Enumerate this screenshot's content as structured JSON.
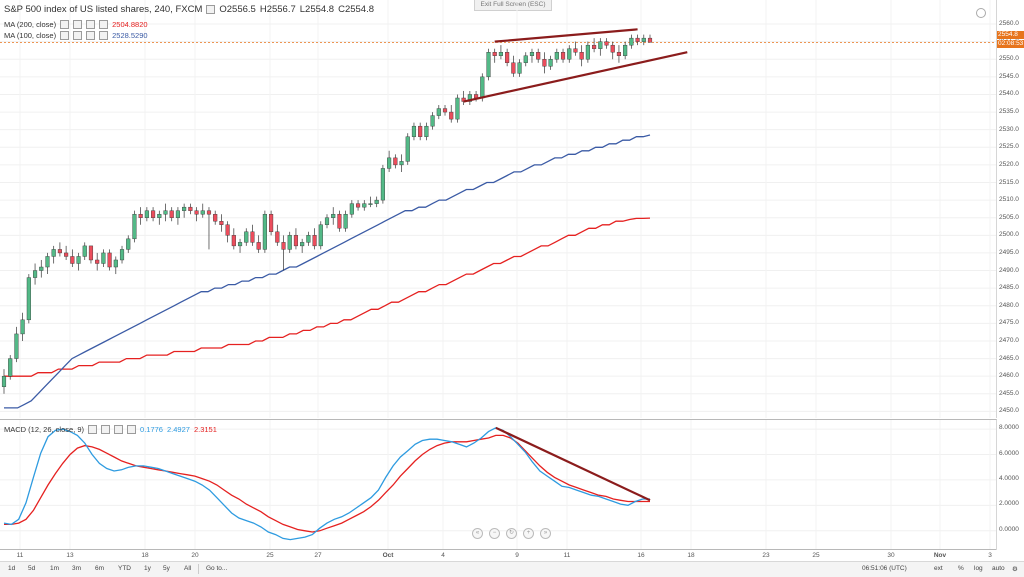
{
  "exit_full_screen": "Exit Full Screen (ESC)",
  "header": {
    "title": "S&P 500 index of US listed shares, 240, FXCM",
    "open": "O2556.5",
    "high": "H2556.7",
    "low": "L2554.8",
    "close": "C2554.8"
  },
  "indicators": {
    "ma200_label": "MA (200, close)",
    "ma200_value": "2504.8820",
    "ma100_label": "MA (100, close)",
    "ma100_value": "2528.5290",
    "macd_label": "MACD (12, 26, close, 9)",
    "macd_hist": "0.1776",
    "macd_line": "2.4927",
    "macd_signal": "2.3151"
  },
  "price_tags": {
    "last": "2554.8",
    "countdown": "02:08:53"
  },
  "colors": {
    "bull": "#53b987",
    "bear": "#eb4d5c",
    "ma100": "#3b5ba5",
    "ma200": "#e52120",
    "macd_line": "#2e9be0",
    "macd_signal": "#e52120",
    "trend": "#8b1c1c",
    "last_price": "#e7741c"
  },
  "time_axis": [
    "11",
    "13",
    "18",
    "20",
    "25",
    "27",
    "Oct",
    "4",
    "9",
    "11",
    "16",
    "18",
    "23",
    "25",
    "30",
    "Nov",
    "3"
  ],
  "bottom_bar": {
    "timeframes": [
      "1d",
      "5d",
      "1m",
      "3m",
      "6m",
      "YTD",
      "1y",
      "5y",
      "All",
      "Go to..."
    ],
    "clock": "06:51:06 (UTC)",
    "buttons": [
      "ext",
      "%",
      "log",
      "auto"
    ]
  },
  "chart_data": [
    {
      "type": "candlestick",
      "title": "S&P 500 index of US listed shares, 240, FXCM",
      "ylim": [
        2445,
        2562
      ],
      "yticks": [
        2450,
        2455,
        2460,
        2465,
        2470,
        2475,
        2480,
        2485,
        2490,
        2495,
        2500,
        2505,
        2510,
        2515,
        2520,
        2525,
        2530,
        2535,
        2540,
        2545,
        2550,
        2555,
        2560
      ],
      "x_labels": [
        "11",
        "13",
        "18",
        "20",
        "25",
        "27",
        "Oct",
        "4",
        "9",
        "11",
        "16",
        "18",
        "23",
        "25",
        "30",
        "Nov",
        "3"
      ],
      "candles": [
        [
          2457,
          2462,
          2455,
          2460
        ],
        [
          2460,
          2466,
          2459,
          2465
        ],
        [
          2465,
          2474,
          2464,
          2472
        ],
        [
          2472,
          2478,
          2470,
          2476
        ],
        [
          2476,
          2489,
          2475,
          2488
        ],
        [
          2488,
          2492,
          2486,
          2490
        ],
        [
          2490,
          2493,
          2488,
          2491
        ],
        [
          2491,
          2495,
          2489,
          2494
        ],
        [
          2494,
          2497,
          2492,
          2496
        ],
        [
          2496,
          2498,
          2494,
          2495
        ],
        [
          2495,
          2497,
          2493,
          2494
        ],
        [
          2494,
          2496,
          2491,
          2492
        ],
        [
          2492,
          2495,
          2490,
          2494
        ],
        [
          2494,
          2498,
          2493,
          2497
        ],
        [
          2497,
          2497,
          2492,
          2493
        ],
        [
          2493,
          2495,
          2490,
          2492
        ],
        [
          2492,
          2496,
          2491,
          2495
        ],
        [
          2495,
          2496,
          2490,
          2491
        ],
        [
          2491,
          2494,
          2489,
          2493
        ],
        [
          2493,
          2497,
          2492,
          2496
        ],
        [
          2496,
          2500,
          2495,
          2499
        ],
        [
          2499,
          2507,
          2498,
          2506
        ],
        [
          2506,
          2508,
          2503,
          2505
        ],
        [
          2505,
          2508,
          2504,
          2507
        ],
        [
          2507,
          2508,
          2504,
          2505
        ],
        [
          2505,
          2507,
          2503,
          2506
        ],
        [
          2506,
          2509,
          2504,
          2507
        ],
        [
          2507,
          2508,
          2504,
          2505
        ],
        [
          2505,
          2508,
          2503,
          2507
        ],
        [
          2507,
          2509,
          2505,
          2508
        ],
        [
          2508,
          2509,
          2506,
          2507
        ],
        [
          2507,
          2508,
          2504,
          2506
        ],
        [
          2506,
          2509,
          2505,
          2507
        ],
        [
          2507,
          2508,
          2496,
          2506
        ],
        [
          2506,
          2507,
          2503,
          2504
        ],
        [
          2504,
          2506,
          2501,
          2503
        ],
        [
          2503,
          2504,
          2498,
          2500
        ],
        [
          2500,
          2502,
          2496,
          2497
        ],
        [
          2497,
          2499,
          2495,
          2498
        ],
        [
          2498,
          2502,
          2497,
          2501
        ],
        [
          2501,
          2503,
          2497,
          2498
        ],
        [
          2498,
          2500,
          2495,
          2496
        ],
        [
          2496,
          2507,
          2495,
          2506
        ],
        [
          2506,
          2507,
          2500,
          2501
        ],
        [
          2501,
          2503,
          2497,
          2498
        ],
        [
          2498,
          2500,
          2490,
          2496
        ],
        [
          2496,
          2501,
          2495,
          2500
        ],
        [
          2500,
          2502,
          2496,
          2497
        ],
        [
          2497,
          2499,
          2495,
          2498
        ],
        [
          2498,
          2501,
          2497,
          2500
        ],
        [
          2500,
          2502,
          2496,
          2497
        ],
        [
          2497,
          2504,
          2496,
          2503
        ],
        [
          2503,
          2506,
          2502,
          2505
        ],
        [
          2505,
          2508,
          2503,
          2506
        ],
        [
          2506,
          2507,
          2501,
          2502
        ],
        [
          2502,
          2507,
          2501,
          2506
        ],
        [
          2506,
          2510,
          2505,
          2509
        ],
        [
          2509,
          2510,
          2507,
          2508
        ],
        [
          2508,
          2510,
          2507,
          2509
        ],
        [
          2509,
          2511,
          2508,
          2509
        ],
        [
          2509,
          2511,
          2508,
          2510
        ],
        [
          2510,
          2520,
          2509,
          2519
        ],
        [
          2519,
          2524,
          2518,
          2522
        ],
        [
          2522,
          2523,
          2519,
          2520
        ],
        [
          2520,
          2523,
          2518,
          2521
        ],
        [
          2521,
          2529,
          2520,
          2528
        ],
        [
          2528,
          2532,
          2527,
          2531
        ],
        [
          2531,
          2532,
          2527,
          2528
        ],
        [
          2528,
          2532,
          2527,
          2531
        ],
        [
          2531,
          2535,
          2530,
          2534
        ],
        [
          2534,
          2537,
          2533,
          2536
        ],
        [
          2536,
          2537,
          2534,
          2535
        ],
        [
          2535,
          2537,
          2532,
          2533
        ],
        [
          2533,
          2540,
          2532,
          2539
        ],
        [
          2539,
          2541,
          2537,
          2538
        ],
        [
          2538,
          2541,
          2537,
          2540
        ],
        [
          2540,
          2541,
          2538,
          2539
        ],
        [
          2539,
          2546,
          2538,
          2545
        ],
        [
          2545,
          2553,
          2544,
          2552
        ],
        [
          2552,
          2553,
          2549,
          2551
        ],
        [
          2551,
          2554,
          2550,
          2552
        ],
        [
          2552,
          2553,
          2548,
          2549
        ],
        [
          2549,
          2551,
          2545,
          2546
        ],
        [
          2546,
          2550,
          2545,
          2549
        ],
        [
          2549,
          2552,
          2548,
          2551
        ],
        [
          2551,
          2553,
          2549,
          2552
        ],
        [
          2552,
          2553,
          2549,
          2550
        ],
        [
          2550,
          2552,
          2546,
          2548
        ],
        [
          2548,
          2551,
          2547,
          2550
        ],
        [
          2550,
          2553,
          2549,
          2552
        ],
        [
          2552,
          2553,
          2549,
          2550
        ],
        [
          2550,
          2554,
          2549,
          2553
        ],
        [
          2553,
          2555,
          2551,
          2552
        ],
        [
          2552,
          2554,
          2548,
          2550
        ],
        [
          2550,
          2555,
          2549,
          2554
        ],
        [
          2554,
          2556,
          2552,
          2553
        ],
        [
          2553,
          2556,
          2551,
          2555
        ],
        [
          2555,
          2556,
          2553,
          2554
        ],
        [
          2554,
          2555,
          2550,
          2552
        ],
        [
          2552,
          2554,
          2549,
          2551
        ],
        [
          2551,
          2555,
          2550,
          2554
        ],
        [
          2554,
          2557,
          2553,
          2556
        ],
        [
          2556,
          2557,
          2554,
          2555
        ],
        [
          2555,
          2557,
          2554,
          2556
        ],
        [
          2556,
          2557,
          2554.8,
          2554.8
        ]
      ],
      "ma100": {
        "name": "MA (100, close)",
        "values": [
          2451,
          2451,
          2451,
          2452,
          2453,
          2455,
          2457,
          2459,
          2461,
          2463,
          2465,
          2466,
          2467,
          2468,
          2469,
          2470,
          2471,
          2472,
          2473,
          2474,
          2475,
          2476,
          2477,
          2478,
          2479,
          2480,
          2481,
          2482,
          2483,
          2484,
          2484,
          2485,
          2485,
          2486,
          2486,
          2487,
          2487,
          2488,
          2488,
          2489,
          2489,
          2490,
          2491,
          2491,
          2492,
          2493,
          2494,
          2495,
          2496,
          2497,
          2498,
          2499,
          2500,
          2501,
          2502,
          2503,
          2504,
          2505,
          2506,
          2507,
          2507,
          2508,
          2508,
          2509,
          2510,
          2510,
          2511,
          2512,
          2513,
          2513,
          2514,
          2515,
          2515,
          2516,
          2517,
          2518,
          2518,
          2519,
          2520,
          2520,
          2521,
          2522,
          2522,
          2523,
          2523,
          2524,
          2524,
          2525,
          2525,
          2526,
          2526,
          2527,
          2527,
          2528,
          2528,
          2528.5
        ]
      },
      "ma200": {
        "name": "MA (200, close)",
        "values": [
          2460,
          2460,
          2460,
          2460,
          2460,
          2461,
          2461,
          2461,
          2462,
          2462,
          2462,
          2463,
          2463,
          2463,
          2464,
          2464,
          2464,
          2464,
          2465,
          2465,
          2465,
          2466,
          2466,
          2466,
          2466,
          2467,
          2467,
          2467,
          2467,
          2468,
          2468,
          2468,
          2468,
          2469,
          2469,
          2469,
          2469,
          2470,
          2470,
          2471,
          2471,
          2471,
          2472,
          2472,
          2473,
          2473,
          2474,
          2474,
          2475,
          2475,
          2476,
          2476,
          2477,
          2478,
          2479,
          2479,
          2480,
          2481,
          2481,
          2482,
          2483,
          2484,
          2484,
          2485,
          2486,
          2486,
          2487,
          2488,
          2489,
          2489,
          2490,
          2491,
          2492,
          2492,
          2493,
          2494,
          2494,
          2495,
          2496,
          2497,
          2497,
          2498,
          2499,
          2500,
          2500,
          2501,
          2502,
          2502,
          2503,
          2503,
          2504,
          2504,
          2504.5,
          2504.8,
          2504.8,
          2504.88
        ]
      },
      "trendlines": [
        {
          "from": [
            79,
            2555
          ],
          "to": [
            102,
            2558.5
          ]
        },
        {
          "from": [
            74,
            2538
          ],
          "to": [
            110,
            2552
          ]
        }
      ]
    },
    {
      "type": "line",
      "title": "MACD (12, 26, close, 9)",
      "ylim": [
        -1.2,
        8.4
      ],
      "yticks": [
        0,
        2,
        4,
        6,
        8
      ],
      "series": [
        {
          "name": "MACD",
          "values": [
            0.6,
            0.5,
            0.9,
            2.2,
            4.2,
            6.1,
            7.4,
            7.9,
            8.0,
            7.8,
            7.5,
            6.9,
            6.0,
            5.3,
            4.9,
            4.7,
            4.8,
            5.0,
            5.1,
            5.1,
            5.0,
            4.9,
            4.7,
            4.5,
            4.3,
            4.1,
            3.9,
            3.6,
            3.2,
            2.6,
            2.0,
            1.4,
            1.0,
            0.8,
            0.6,
            0.3,
            -0.1,
            -0.3,
            -0.6,
            -0.7,
            -0.6,
            -0.5,
            -0.3,
            0.2,
            0.6,
            0.9,
            1.1,
            1.4,
            1.8,
            2.2,
            2.6,
            3.2,
            4.2,
            5.1,
            5.8,
            6.3,
            6.8,
            7.1,
            7.2,
            7.2,
            7.1,
            7.0,
            6.8,
            6.6,
            6.9,
            7.3,
            7.8,
            8.1,
            7.9,
            7.4,
            6.8,
            6.2,
            5.4,
            4.7,
            4.3,
            3.9,
            3.5,
            3.4,
            3.2,
            3.0,
            2.8,
            2.7,
            2.5,
            2.3,
            2.1,
            2.0,
            2.3,
            2.5,
            2.5
          ]
        },
        {
          "name": "Signal",
          "values": [
            0.5,
            0.5,
            0.6,
            0.9,
            1.6,
            2.6,
            3.6,
            4.5,
            5.3,
            6.0,
            6.5,
            6.7,
            6.6,
            6.4,
            6.1,
            5.8,
            5.5,
            5.3,
            5.1,
            5.0,
            4.9,
            4.8,
            4.7,
            4.6,
            4.5,
            4.4,
            4.3,
            4.1,
            3.9,
            3.6,
            3.2,
            2.8,
            2.5,
            2.1,
            1.8,
            1.5,
            1.1,
            0.8,
            0.5,
            0.3,
            0.1,
            0.0,
            -0.1,
            0.0,
            0.2,
            0.4,
            0.6,
            0.9,
            1.2,
            1.5,
            1.9,
            2.4,
            3.0,
            3.6,
            4.3,
            4.9,
            5.5,
            6.0,
            6.4,
            6.7,
            6.9,
            7.0,
            7.0,
            7.0,
            7.1,
            7.2,
            7.3,
            7.5,
            7.5,
            7.3,
            6.9,
            6.3,
            5.7,
            5.1,
            4.6,
            4.2,
            3.9,
            3.6,
            3.4,
            3.2,
            3.0,
            2.8,
            2.7,
            2.5,
            2.4,
            2.3,
            2.3,
            2.3,
            2.3
          ]
        }
      ],
      "trendline": {
        "from": [
          67,
          8.1
        ],
        "to": [
          88,
          2.4
        ]
      }
    }
  ]
}
